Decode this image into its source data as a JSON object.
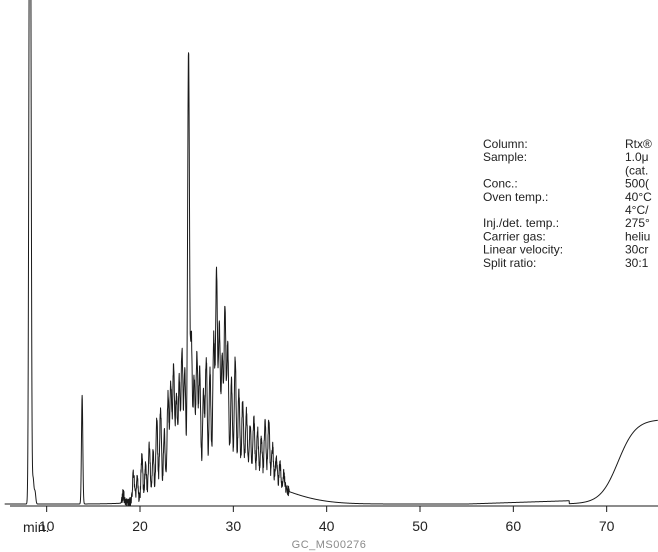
{
  "chart_data": {
    "type": "line",
    "title": "",
    "xlabel": "",
    "ylabel": "",
    "x_unit_label": "min.",
    "xlim": [
      5.0,
      75.5
    ],
    "ylim": [
      0,
      1000
    ],
    "x_ticks": [
      10,
      20,
      30,
      40,
      50,
      60,
      70
    ],
    "tick_labels": [
      "10",
      "20",
      "30",
      "40",
      "50",
      "60",
      "70"
    ],
    "grid": false,
    "line_color": "#1a1a1a",
    "baseline": 4,
    "peaks": [
      {
        "x": 8.15,
        "y": 1000,
        "w": 0.08
      },
      {
        "x": 8.28,
        "y": 980,
        "w": 0.08
      },
      {
        "x": 8.55,
        "y": 50,
        "w": 0.08
      },
      {
        "x": 8.75,
        "y": 25,
        "w": 0.08
      },
      {
        "x": 13.8,
        "y": 218,
        "w": 0.07
      },
      {
        "x": 18.2,
        "y": 18,
        "w": 0.1
      },
      {
        "x": 19.3,
        "y": 60,
        "w": 0.1
      },
      {
        "x": 19.7,
        "y": 45,
        "w": 0.1
      },
      {
        "x": 20.2,
        "y": 90,
        "w": 0.1
      },
      {
        "x": 20.6,
        "y": 70,
        "w": 0.1
      },
      {
        "x": 21.0,
        "y": 115,
        "w": 0.1
      },
      {
        "x": 21.4,
        "y": 95,
        "w": 0.1
      },
      {
        "x": 21.8,
        "y": 160,
        "w": 0.1
      },
      {
        "x": 22.2,
        "y": 180,
        "w": 0.1
      },
      {
        "x": 22.6,
        "y": 130,
        "w": 0.1
      },
      {
        "x": 23.0,
        "y": 200,
        "w": 0.1
      },
      {
        "x": 23.3,
        "y": 225,
        "w": 0.1
      },
      {
        "x": 23.6,
        "y": 260,
        "w": 0.1
      },
      {
        "x": 23.9,
        "y": 195,
        "w": 0.1
      },
      {
        "x": 24.2,
        "y": 230,
        "w": 0.1
      },
      {
        "x": 24.5,
        "y": 285,
        "w": 0.1
      },
      {
        "x": 24.8,
        "y": 240,
        "w": 0.1
      },
      {
        "x": 25.2,
        "y": 880,
        "w": 0.1
      },
      {
        "x": 25.5,
        "y": 300,
        "w": 0.1
      },
      {
        "x": 25.8,
        "y": 215,
        "w": 0.1
      },
      {
        "x": 26.1,
        "y": 265,
        "w": 0.1
      },
      {
        "x": 26.4,
        "y": 230,
        "w": 0.1
      },
      {
        "x": 26.8,
        "y": 180,
        "w": 0.1
      },
      {
        "x": 27.1,
        "y": 250,
        "w": 0.1
      },
      {
        "x": 27.5,
        "y": 220,
        "w": 0.1
      },
      {
        "x": 27.9,
        "y": 290,
        "w": 0.1
      },
      {
        "x": 28.2,
        "y": 415,
        "w": 0.1
      },
      {
        "x": 28.5,
        "y": 300,
        "w": 0.1
      },
      {
        "x": 28.8,
        "y": 245,
        "w": 0.1
      },
      {
        "x": 29.1,
        "y": 340,
        "w": 0.1
      },
      {
        "x": 29.4,
        "y": 265,
        "w": 0.1
      },
      {
        "x": 29.8,
        "y": 190,
        "w": 0.1
      },
      {
        "x": 30.2,
        "y": 240,
        "w": 0.1
      },
      {
        "x": 30.6,
        "y": 170,
        "w": 0.1
      },
      {
        "x": 31.0,
        "y": 150,
        "w": 0.1
      },
      {
        "x": 31.4,
        "y": 135,
        "w": 0.1
      },
      {
        "x": 31.8,
        "y": 105,
        "w": 0.1
      },
      {
        "x": 32.2,
        "y": 120,
        "w": 0.1
      },
      {
        "x": 32.6,
        "y": 100,
        "w": 0.1
      },
      {
        "x": 33.0,
        "y": 90,
        "w": 0.1
      },
      {
        "x": 33.4,
        "y": 120,
        "w": 0.1
      },
      {
        "x": 33.8,
        "y": 130,
        "w": 0.1
      },
      {
        "x": 34.2,
        "y": 80,
        "w": 0.1
      },
      {
        "x": 34.6,
        "y": 55,
        "w": 0.1
      },
      {
        "x": 35.0,
        "y": 45,
        "w": 0.1
      },
      {
        "x": 35.4,
        "y": 30,
        "w": 0.1
      }
    ],
    "hump": {
      "center": 30.2,
      "sigma": 4.6,
      "height": 55
    },
    "drift": {
      "start": 55,
      "end": 75.5,
      "rise_start": 66,
      "plateau": 170
    }
  },
  "parameters": [
    {
      "key": "Column:",
      "value": "Rtx®"
    },
    {
      "key": "Sample:",
      "value": "1.0μ"
    },
    {
      "key": "",
      "value": "(cat."
    },
    {
      "key": "Conc.:",
      "value": "500("
    },
    {
      "key": "Oven temp.:",
      "value": "40°C"
    },
    {
      "key": "",
      "value": "4°C/"
    },
    {
      "key": "Inj./det. temp.:",
      "value": "275°"
    },
    {
      "key": "Carrier gas:",
      "value": "heliu"
    },
    {
      "key": "Linear velocity:",
      "value": "30cr"
    },
    {
      "key": "Split ratio:",
      "value": "30:1"
    }
  ],
  "footer": {
    "code": "GC_MS00276"
  }
}
